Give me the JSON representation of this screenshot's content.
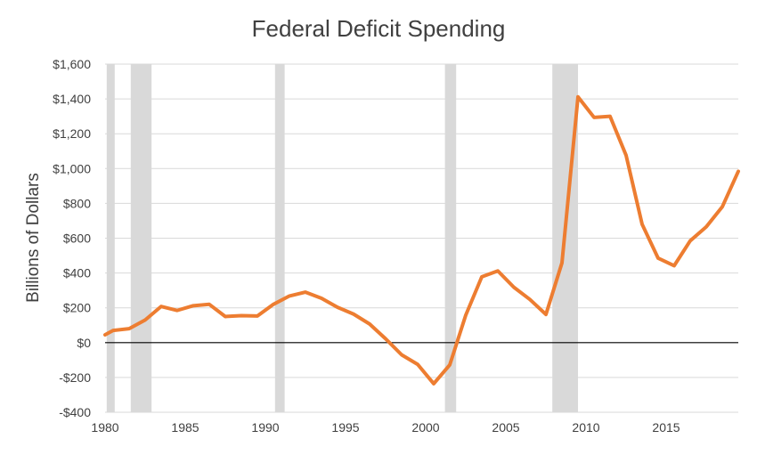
{
  "colors": {
    "line": "#ED7D31",
    "recession": "#D9D9D9",
    "grid": "#D9D9D9",
    "zero_line": "#000000",
    "text": "#404040"
  },
  "chart_data": {
    "type": "line",
    "title": "Federal Deficit Spending",
    "xlabel": "",
    "ylabel": "Billions of Dollars",
    "xlim": [
      1980,
      2019.5
    ],
    "ylim": [
      -400,
      1600
    ],
    "x_ticks": [
      1980,
      1985,
      1990,
      1995,
      2000,
      2005,
      2010,
      2015
    ],
    "y_ticks": [
      -400,
      -200,
      0,
      200,
      400,
      600,
      800,
      1000,
      1200,
      1400,
      1600
    ],
    "y_tick_labels": [
      "-$400",
      "-$200",
      "$0",
      "$200",
      "$400",
      "$600",
      "$800",
      "$1,000",
      "$1,200",
      "$1,400",
      "$1,600"
    ],
    "grid": true,
    "recession_periods": [
      {
        "start": 1980.1,
        "end": 1980.6
      },
      {
        "start": 1981.6,
        "end": 1982.9
      },
      {
        "start": 1990.6,
        "end": 1991.2
      },
      {
        "start": 2001.2,
        "end": 2001.9
      },
      {
        "start": 2007.9,
        "end": 2009.5
      }
    ],
    "series": [
      {
        "name": "Federal Deficit",
        "x": [
          1979.8,
          1980.5,
          1981.5,
          1982.5,
          1983.5,
          1984.5,
          1985.5,
          1986.5,
          1987.5,
          1988.5,
          1989.5,
          1990.5,
          1991.5,
          1992.5,
          1993.5,
          1994.5,
          1995.5,
          1996.5,
          1997.5,
          1998.5,
          1999.5,
          2000.5,
          2001.5,
          2002.5,
          2003.5,
          2004.5,
          2005.5,
          2006.5,
          2007.5,
          2008.5,
          2009.5,
          2010.5,
          2011.5,
          2012.5,
          2013.5,
          2014.5,
          2015.5,
          2016.5,
          2017.5,
          2018.5,
          2019.5
        ],
        "values": [
          45,
          70,
          80,
          130,
          208,
          185,
          212,
          220,
          150,
          155,
          153,
          220,
          268,
          290,
          255,
          203,
          164,
          107,
          22,
          -70,
          -125,
          -236,
          -128,
          158,
          378,
          412,
          318,
          248,
          162,
          458,
          1412,
          1294,
          1300,
          1076,
          680,
          485,
          442,
          585,
          665,
          780,
          984
        ]
      }
    ]
  }
}
